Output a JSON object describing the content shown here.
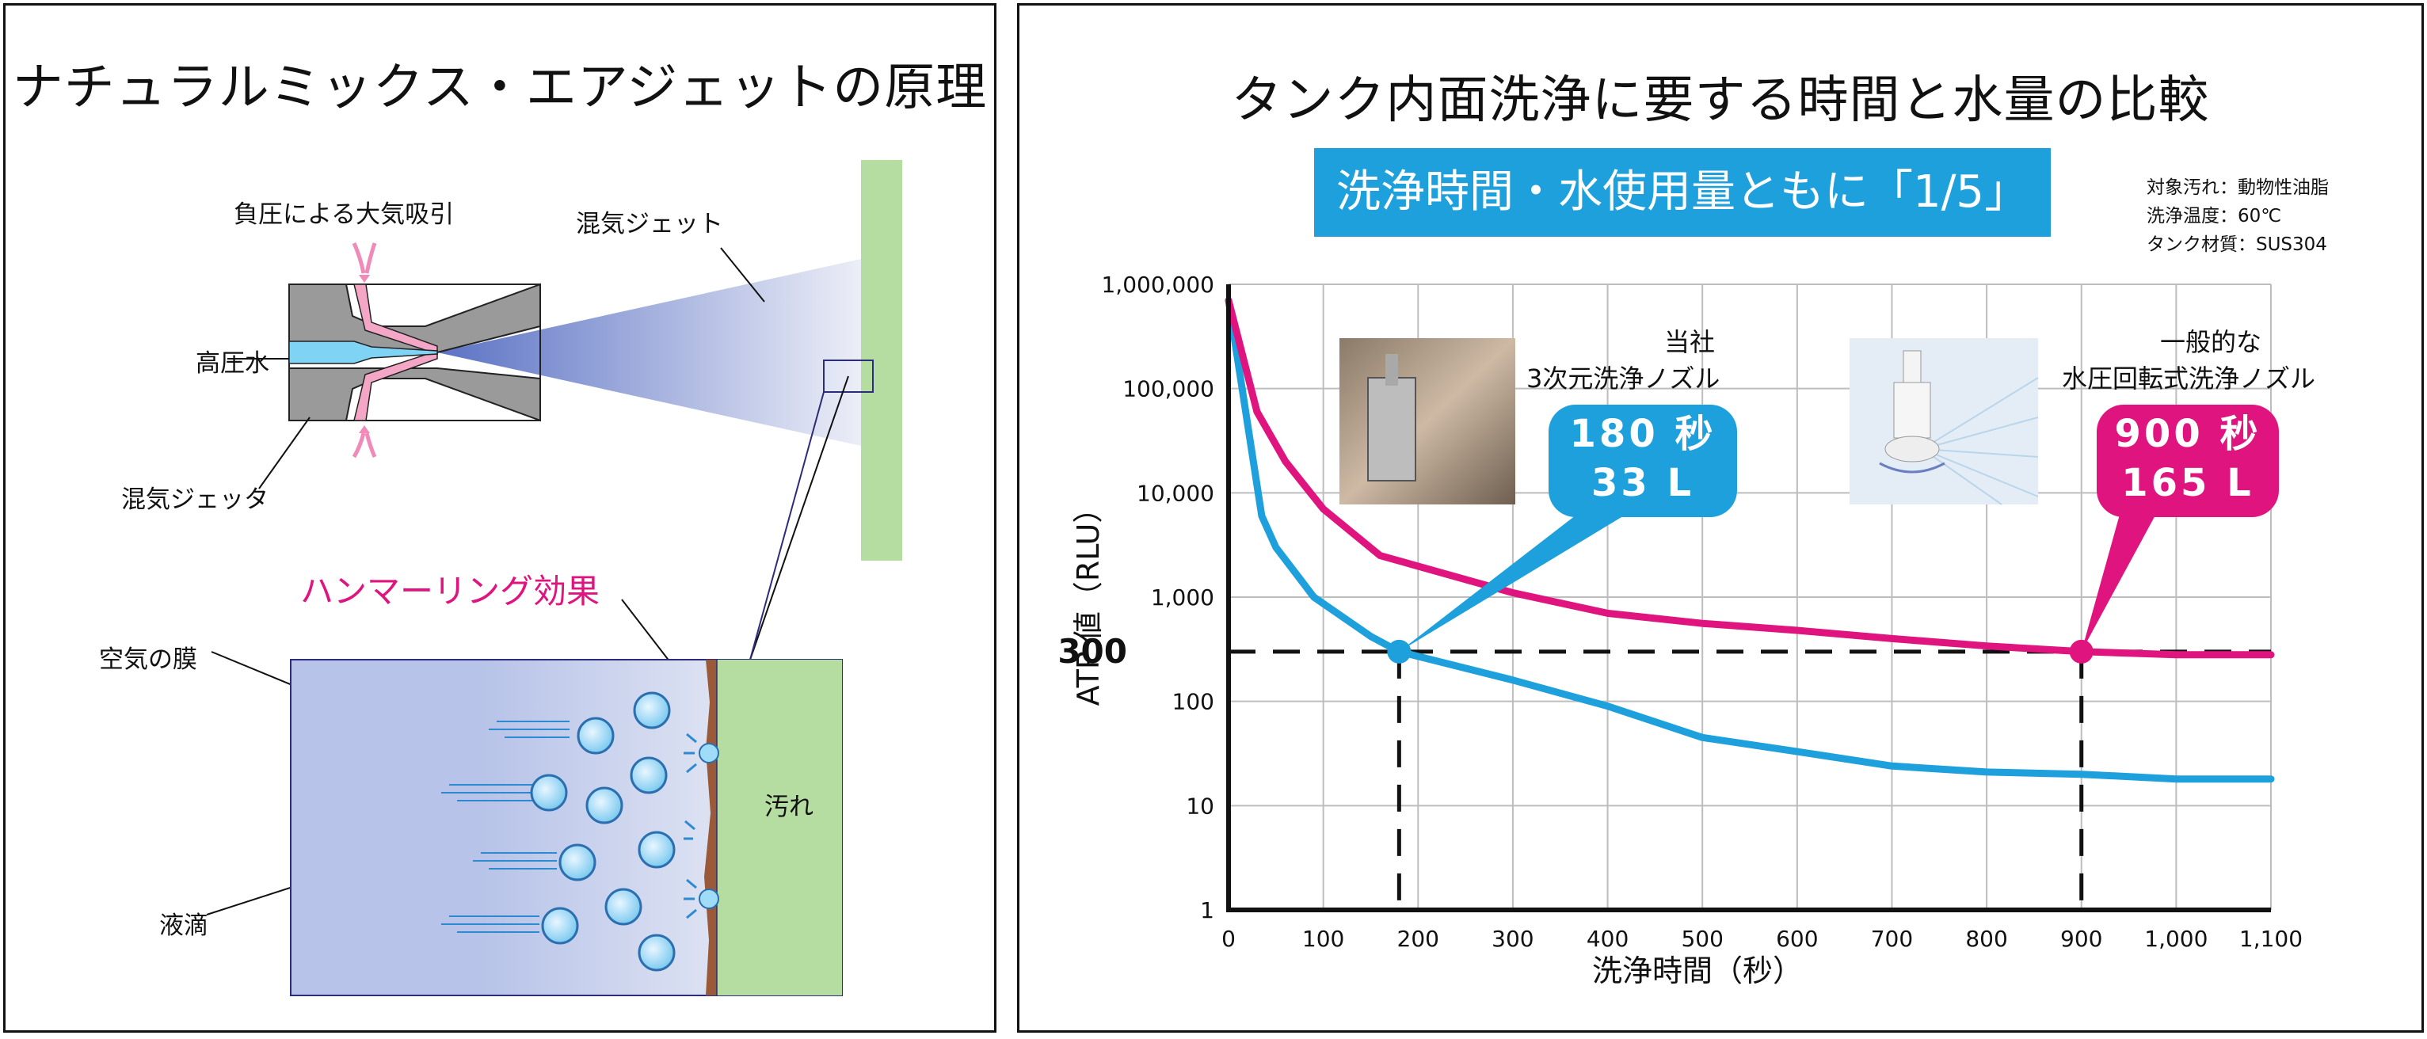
{
  "left": {
    "title": "ナチュラルミックス・エアジェットの原理",
    "labels": {
      "suction": "負圧による大気吸引",
      "mixed_jet": "混気ジェット",
      "high_pressure_water": "高圧水",
      "mixed_jetter": "混気ジェッタ",
      "hammering": "ハンマーリング効果",
      "air_film": "空気の膜",
      "droplet": "液滴",
      "dirt": "汚れ"
    }
  },
  "right": {
    "title": "タンク内面洗浄に要する時間と水量の比較",
    "banner": "洗浄時間・水使用量ともに「1/5」",
    "conditions": [
      "対象汚れ：動物性油脂",
      "洗浄温度：60℃",
      "タンク材質：SUS304"
    ],
    "products": {
      "ours": {
        "line1": "当社",
        "line2": "3次元洗浄ノズル",
        "time": "180 秒",
        "water": "33 L",
        "color": "#1ea0dc"
      },
      "general": {
        "line1": "一般的な",
        "line2": "水圧回転式洗浄ノズル",
        "time": "900 秒",
        "water": "165 L",
        "color": "#e0147f"
      }
    },
    "highlight_label": "300"
  },
  "chart_data": {
    "type": "line",
    "xlabel": "洗浄時間（秒）",
    "ylabel": "ATP 値（RLU）",
    "x_ticks": [
      0,
      100,
      200,
      300,
      400,
      500,
      600,
      700,
      800,
      900,
      1000,
      1100
    ],
    "x_tick_labels": [
      "0",
      "100",
      "200",
      "300",
      "400",
      "500",
      "600",
      "700",
      "800",
      "900",
      "1,000",
      "1,100"
    ],
    "y_ticks": [
      1,
      10,
      100,
      1000,
      10000,
      100000,
      1000000
    ],
    "y_tick_labels": [
      "1",
      "10",
      "100",
      "1,000",
      "10,000",
      "100,000",
      "1,000,000"
    ],
    "xlim": [
      0,
      1100
    ],
    "ylim": [
      1,
      1000000
    ],
    "y_scale": "log",
    "grid": true,
    "threshold": 300,
    "series": [
      {
        "color": "#1ea0dc",
        "x": [
          0,
          35,
          50,
          90,
          150,
          180,
          300,
          400,
          500,
          600,
          700,
          800,
          900,
          1000,
          1100
        ],
        "y": [
          700000,
          6000,
          3000,
          1000,
          420,
          300,
          160,
          90,
          45,
          33,
          24,
          21,
          20,
          18,
          18
        ]
      },
      {
        "color": "#e0147f",
        "x": [
          0,
          30,
          60,
          100,
          160,
          300,
          400,
          500,
          600,
          700,
          800,
          900,
          1000,
          1100
        ],
        "y": [
          700000,
          60000,
          20000,
          7000,
          2500,
          1100,
          700,
          560,
          480,
          400,
          340,
          300,
          280,
          280
        ]
      }
    ],
    "markers": [
      {
        "x": 180,
        "y": 300,
        "color": "#1ea0dc"
      },
      {
        "x": 900,
        "y": 300,
        "color": "#e0147f"
      }
    ]
  }
}
